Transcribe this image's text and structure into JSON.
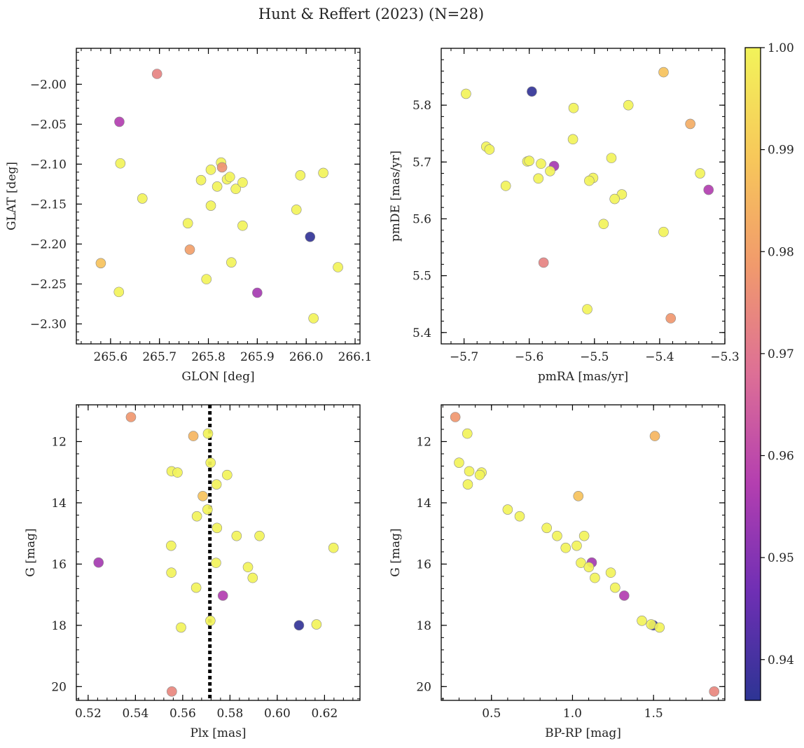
{
  "figure": {
    "title": "Hunt & Reffert (2023) (N=28)"
  },
  "colorbar": {
    "vmin": 0.936,
    "vmax": 1.0,
    "ticks": [
      "0.94",
      "0.95",
      "0.96",
      "0.97",
      "0.98",
      "0.99",
      "1.00"
    ],
    "tick_values": [
      0.94,
      0.95,
      0.96,
      0.97,
      0.98,
      0.99,
      1.0
    ],
    "colormap": "plasma",
    "colormap_stops": [
      "#2d3494",
      "#6f2fb4",
      "#b43fb0",
      "#dd6f96",
      "#f19a6c",
      "#f7c85a",
      "#f2f35a"
    ]
  },
  "chart_data": [
    {
      "type": "scatter",
      "id": "lt",
      "xlabel": "GLON [deg]",
      "ylabel": "GLAT [deg]",
      "xlim": [
        265.53,
        266.11
      ],
      "ylim": [
        -2.325,
        -1.955
      ],
      "y_inverted": false,
      "xticks": [
        265.6,
        265.7,
        265.8,
        265.9,
        266.0,
        266.1
      ],
      "xtick_labels": [
        "265.6",
        "265.7",
        "265.8",
        "265.9",
        "266.0",
        "266.1"
      ],
      "yticks": [
        -2.3,
        -2.25,
        -2.2,
        -2.15,
        -2.1,
        -2.05,
        -2.0
      ],
      "ytick_labels": [
        "−2.30",
        "−2.25",
        "−2.20",
        "−2.15",
        "−2.10",
        "−2.05",
        "−2.00"
      ],
      "points": [
        {
          "x": 265.695,
          "y": -1.987,
          "c": 0.973
        },
        {
          "x": 265.618,
          "y": -2.047,
          "c": 0.957
        },
        {
          "x": 265.62,
          "y": -2.099,
          "c": 1.0
        },
        {
          "x": 265.665,
          "y": -2.143,
          "c": 1.0
        },
        {
          "x": 265.785,
          "y": -2.12,
          "c": 1.0
        },
        {
          "x": 265.805,
          "y": -2.107,
          "c": 1.0
        },
        {
          "x": 265.826,
          "y": -2.098,
          "c": 1.0
        },
        {
          "x": 265.828,
          "y": -2.104,
          "c": 0.977
        },
        {
          "x": 265.818,
          "y": -2.128,
          "c": 1.0
        },
        {
          "x": 265.838,
          "y": -2.119,
          "c": 1.0
        },
        {
          "x": 265.844,
          "y": -2.116,
          "c": 1.0
        },
        {
          "x": 265.856,
          "y": -2.131,
          "c": 1.0
        },
        {
          "x": 265.87,
          "y": -2.123,
          "c": 1.0
        },
        {
          "x": 265.805,
          "y": -2.152,
          "c": 1.0
        },
        {
          "x": 265.758,
          "y": -2.174,
          "c": 1.0
        },
        {
          "x": 265.87,
          "y": -2.177,
          "c": 1.0
        },
        {
          "x": 265.762,
          "y": -2.207,
          "c": 0.98
        },
        {
          "x": 265.58,
          "y": -2.224,
          "c": 0.988
        },
        {
          "x": 265.617,
          "y": -2.26,
          "c": 1.0
        },
        {
          "x": 265.796,
          "y": -2.244,
          "c": 1.0
        },
        {
          "x": 265.847,
          "y": -2.223,
          "c": 1.0
        },
        {
          "x": 265.9,
          "y": -2.261,
          "c": 0.955
        },
        {
          "x": 265.98,
          "y": -2.157,
          "c": 1.0
        },
        {
          "x": 265.988,
          "y": -2.114,
          "c": 1.0
        },
        {
          "x": 266.035,
          "y": -2.111,
          "c": 1.0
        },
        {
          "x": 266.008,
          "y": -2.191,
          "c": 0.937
        },
        {
          "x": 266.015,
          "y": -2.293,
          "c": 1.0
        },
        {
          "x": 266.065,
          "y": -2.229,
          "c": 1.0
        }
      ]
    },
    {
      "type": "scatter",
      "id": "rt",
      "xlabel": "pmRA [mas/yr]",
      "ylabel": "pmDE [mas/yr]",
      "xlim": [
        -5.735,
        -5.3
      ],
      "ylim": [
        5.38,
        5.9
      ],
      "y_inverted": false,
      "xticks": [
        -5.7,
        -5.6,
        -5.5,
        -5.4,
        -5.3
      ],
      "xtick_labels": [
        "−5.7",
        "−5.6",
        "−5.5",
        "−5.4",
        "−5.3"
      ],
      "yticks": [
        5.4,
        5.5,
        5.6,
        5.7,
        5.8
      ],
      "ytick_labels": [
        "5.4",
        "5.5",
        "5.6",
        "5.7",
        "5.8"
      ],
      "points": [
        {
          "x": -5.697,
          "y": 5.82,
          "c": 1.0
        },
        {
          "x": -5.596,
          "y": 5.824,
          "c": 0.937
        },
        {
          "x": -5.394,
          "y": 5.858,
          "c": 0.988
        },
        {
          "x": -5.448,
          "y": 5.8,
          "c": 1.0
        },
        {
          "x": -5.532,
          "y": 5.795,
          "c": 1.0
        },
        {
          "x": -5.353,
          "y": 5.767,
          "c": 0.983
        },
        {
          "x": -5.533,
          "y": 5.74,
          "c": 1.0
        },
        {
          "x": -5.666,
          "y": 5.727,
          "c": 1.0
        },
        {
          "x": -5.661,
          "y": 5.722,
          "c": 1.0
        },
        {
          "x": -5.474,
          "y": 5.707,
          "c": 1.0
        },
        {
          "x": -5.603,
          "y": 5.701,
          "c": 1.0
        },
        {
          "x": -5.6,
          "y": 5.702,
          "c": 1.0
        },
        {
          "x": -5.582,
          "y": 5.697,
          "c": 1.0
        },
        {
          "x": -5.562,
          "y": 5.693,
          "c": 0.955
        },
        {
          "x": -5.568,
          "y": 5.684,
          "c": 1.0
        },
        {
          "x": -5.338,
          "y": 5.68,
          "c": 1.0
        },
        {
          "x": -5.502,
          "y": 5.672,
          "c": 1.0
        },
        {
          "x": -5.586,
          "y": 5.671,
          "c": 1.0
        },
        {
          "x": -5.508,
          "y": 5.667,
          "c": 1.0
        },
        {
          "x": -5.636,
          "y": 5.658,
          "c": 1.0
        },
        {
          "x": -5.325,
          "y": 5.651,
          "c": 0.957
        },
        {
          "x": -5.458,
          "y": 5.643,
          "c": 1.0
        },
        {
          "x": -5.469,
          "y": 5.635,
          "c": 1.0
        },
        {
          "x": -5.486,
          "y": 5.591,
          "c": 1.0
        },
        {
          "x": -5.394,
          "y": 5.577,
          "c": 1.0
        },
        {
          "x": -5.578,
          "y": 5.523,
          "c": 0.973
        },
        {
          "x": -5.511,
          "y": 5.441,
          "c": 1.0
        },
        {
          "x": -5.383,
          "y": 5.425,
          "c": 0.978
        }
      ]
    },
    {
      "type": "scatter",
      "id": "lb",
      "xlabel": "Plx [mas]",
      "ylabel": "G [mag]",
      "xlim": [
        0.515,
        0.635
      ],
      "ylim": [
        20.45,
        10.8
      ],
      "y_inverted": true,
      "xticks": [
        0.52,
        0.54,
        0.56,
        0.58,
        0.6,
        0.62
      ],
      "xtick_labels": [
        "0.52",
        "0.54",
        "0.56",
        "0.58",
        "0.60",
        "0.62"
      ],
      "yticks": [
        12,
        14,
        16,
        18,
        20
      ],
      "ytick_labels": [
        "12",
        "14",
        "16",
        "18",
        "20"
      ],
      "vline": 0.5715,
      "points": [
        {
          "x": 0.5381,
          "y": 11.2,
          "c": 0.978
        },
        {
          "x": 0.5645,
          "y": 11.82,
          "c": 0.985
        },
        {
          "x": 0.5707,
          "y": 11.74,
          "c": 1.0
        },
        {
          "x": 0.5718,
          "y": 12.69,
          "c": 1.0
        },
        {
          "x": 0.5553,
          "y": 12.97,
          "c": 1.0
        },
        {
          "x": 0.5578,
          "y": 13.01,
          "c": 1.0
        },
        {
          "x": 0.5788,
          "y": 13.09,
          "c": 1.0
        },
        {
          "x": 0.5743,
          "y": 13.4,
          "c": 1.0
        },
        {
          "x": 0.5685,
          "y": 13.78,
          "c": 0.988
        },
        {
          "x": 0.5705,
          "y": 14.22,
          "c": 1.0
        },
        {
          "x": 0.566,
          "y": 14.44,
          "c": 1.0
        },
        {
          "x": 0.5745,
          "y": 14.82,
          "c": 1.0
        },
        {
          "x": 0.5828,
          "y": 15.08,
          "c": 1.0
        },
        {
          "x": 0.5925,
          "y": 15.08,
          "c": 1.0
        },
        {
          "x": 0.5551,
          "y": 15.4,
          "c": 1.0
        },
        {
          "x": 0.6238,
          "y": 15.47,
          "c": 1.0
        },
        {
          "x": 0.5244,
          "y": 15.95,
          "c": 0.955
        },
        {
          "x": 0.5741,
          "y": 15.96,
          "c": 1.0
        },
        {
          "x": 0.5876,
          "y": 16.1,
          "c": 1.0
        },
        {
          "x": 0.5552,
          "y": 16.28,
          "c": 1.0
        },
        {
          "x": 0.5896,
          "y": 16.45,
          "c": 1.0
        },
        {
          "x": 0.5657,
          "y": 16.77,
          "c": 1.0
        },
        {
          "x": 0.577,
          "y": 17.03,
          "c": 0.957
        },
        {
          "x": 0.5717,
          "y": 17.85,
          "c": 1.0
        },
        {
          "x": 0.5593,
          "y": 18.07,
          "c": 1.0
        },
        {
          "x": 0.6092,
          "y": 18.0,
          "c": 0.937
        },
        {
          "x": 0.6166,
          "y": 17.97,
          "c": 1.0
        },
        {
          "x": 0.5554,
          "y": 20.16,
          "c": 0.974
        }
      ]
    },
    {
      "type": "scatter",
      "id": "rb",
      "xlabel": "BP-RP [mag]",
      "ylabel": "G [mag]",
      "xlim": [
        0.19,
        1.94
      ],
      "ylim": [
        20.45,
        10.8
      ],
      "y_inverted": true,
      "xticks": [
        0.5,
        1.0,
        1.5
      ],
      "xtick_labels": [
        "0.5",
        "1.0",
        "1.5"
      ],
      "yticks": [
        12,
        14,
        16,
        18,
        20
      ],
      "ytick_labels": [
        "12",
        "14",
        "16",
        "18",
        "20"
      ],
      "points": [
        {
          "x": 0.277,
          "y": 11.2,
          "c": 0.978
        },
        {
          "x": 0.351,
          "y": 11.74,
          "c": 1.0
        },
        {
          "x": 1.508,
          "y": 11.82,
          "c": 0.985
        },
        {
          "x": 0.3,
          "y": 12.69,
          "c": 1.0
        },
        {
          "x": 0.363,
          "y": 12.97,
          "c": 1.0
        },
        {
          "x": 0.439,
          "y": 13.01,
          "c": 1.0
        },
        {
          "x": 0.428,
          "y": 13.09,
          "c": 1.0
        },
        {
          "x": 0.354,
          "y": 13.4,
          "c": 1.0
        },
        {
          "x": 1.036,
          "y": 13.78,
          "c": 0.988
        },
        {
          "x": 0.6,
          "y": 14.22,
          "c": 1.0
        },
        {
          "x": 0.674,
          "y": 14.44,
          "c": 1.0
        },
        {
          "x": 0.841,
          "y": 14.82,
          "c": 1.0
        },
        {
          "x": 0.905,
          "y": 15.08,
          "c": 1.0
        },
        {
          "x": 1.072,
          "y": 15.08,
          "c": 1.0
        },
        {
          "x": 1.026,
          "y": 15.4,
          "c": 1.0
        },
        {
          "x": 0.958,
          "y": 15.47,
          "c": 1.0
        },
        {
          "x": 1.119,
          "y": 15.95,
          "c": 0.955
        },
        {
          "x": 1.052,
          "y": 15.96,
          "c": 1.0
        },
        {
          "x": 1.101,
          "y": 16.1,
          "c": 1.0
        },
        {
          "x": 1.236,
          "y": 16.28,
          "c": 1.0
        },
        {
          "x": 1.138,
          "y": 16.45,
          "c": 1.0
        },
        {
          "x": 1.263,
          "y": 16.77,
          "c": 1.0
        },
        {
          "x": 1.319,
          "y": 17.03,
          "c": 0.957
        },
        {
          "x": 1.428,
          "y": 17.85,
          "c": 1.0
        },
        {
          "x": 1.499,
          "y": 18.0,
          "c": 0.937
        },
        {
          "x": 1.485,
          "y": 17.97,
          "c": 1.0
        },
        {
          "x": 1.537,
          "y": 18.07,
          "c": 1.0
        },
        {
          "x": 1.874,
          "y": 20.16,
          "c": 0.974
        }
      ]
    }
  ]
}
